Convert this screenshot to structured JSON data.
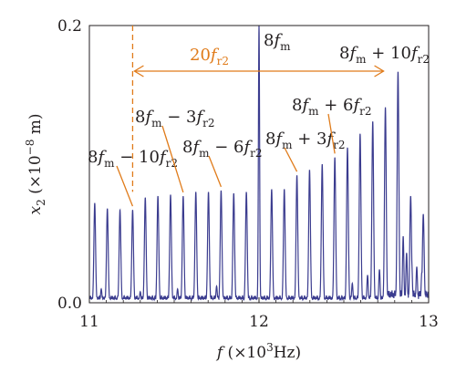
{
  "chart_data": {
    "type": "line",
    "xlabel": {
      "var": "f",
      "unit_prefix": "(×10",
      "unit_exp": "3",
      "unit_suffix": "Hz)"
    },
    "ylabel": {
      "var": "x",
      "sub": "2",
      "unit_prefix": "(×10",
      "unit_exp": "−8",
      "unit_suffix": " m)"
    },
    "xlim": [
      11,
      13
    ],
    "ylim": [
      0,
      0.2
    ],
    "x_ticks": [
      "11",
      "12",
      "13"
    ],
    "y_ticks": [
      "0.0",
      "0.2"
    ],
    "grid": false,
    "line_color": "#3b3c8f",
    "annotation_color": "#e07b1a",
    "fm_peak": {
      "x": 12.0,
      "y": 0.2
    },
    "sideband_step": 0.0745,
    "sidebands": [
      {
        "n": -13,
        "y": 0.072
      },
      {
        "n": -12,
        "y": 0.068
      },
      {
        "n": -11,
        "y": 0.067
      },
      {
        "n": -10,
        "y": 0.067
      },
      {
        "n": -9,
        "y": 0.076
      },
      {
        "n": -8,
        "y": 0.077
      },
      {
        "n": -7,
        "y": 0.078
      },
      {
        "n": -6,
        "y": 0.077
      },
      {
        "n": -5,
        "y": 0.08
      },
      {
        "n": -4,
        "y": 0.08
      },
      {
        "n": -3,
        "y": 0.081
      },
      {
        "n": -2,
        "y": 0.079
      },
      {
        "n": -1,
        "y": 0.08
      },
      {
        "n": 1,
        "y": 0.082
      },
      {
        "n": 2,
        "y": 0.082
      },
      {
        "n": 3,
        "y": 0.092
      },
      {
        "n": 4,
        "y": 0.096
      },
      {
        "n": 5,
        "y": 0.1
      },
      {
        "n": 6,
        "y": 0.105
      },
      {
        "n": 7,
        "y": 0.112
      },
      {
        "n": 8,
        "y": 0.122
      },
      {
        "n": 9,
        "y": 0.131
      },
      {
        "n": 10,
        "y": 0.141
      },
      {
        "n": 11,
        "y": 0.167
      },
      {
        "n": 12,
        "y": 0.077
      },
      {
        "n": 13,
        "y": 0.064
      }
    ],
    "noise_peaks": [
      {
        "x": 12.82,
        "y": 0.033
      },
      {
        "x": 12.85,
        "y": 0.048
      },
      {
        "x": 12.87,
        "y": 0.036
      },
      {
        "x": 12.9,
        "y": 0.03
      },
      {
        "x": 12.93,
        "y": 0.026
      },
      {
        "x": 12.96,
        "y": 0.022
      },
      {
        "x": 12.71,
        "y": 0.024
      },
      {
        "x": 12.64,
        "y": 0.02
      },
      {
        "x": 12.55,
        "y": 0.014
      },
      {
        "x": 11.07,
        "y": 0.01
      },
      {
        "x": 11.3,
        "y": 0.008
      },
      {
        "x": 11.52,
        "y": 0.01
      },
      {
        "x": 11.75,
        "y": 0.012
      },
      {
        "x": 12.3,
        "y": 0.012
      }
    ],
    "annotations": [
      {
        "id": "fm",
        "base": "8",
        "var": "f",
        "sub": "m",
        "op": "",
        "coef": "",
        "var2": "",
        "sub2": ""
      },
      {
        "id": "plus10",
        "base": "8",
        "var": "f",
        "sub": "m",
        "op": " + ",
        "coef": "10",
        "var2": "f",
        "sub2": "r2"
      },
      {
        "id": "minus3",
        "base": "8",
        "var": "f",
        "sub": "m",
        "op": " − ",
        "coef": "3",
        "var2": "f",
        "sub2": "r2"
      },
      {
        "id": "plus6",
        "base": "8",
        "var": "f",
        "sub": "m",
        "op": " + ",
        "coef": "6",
        "var2": "f",
        "sub2": "r2"
      },
      {
        "id": "minus6",
        "base": "8",
        "var": "f",
        "sub": "m",
        "op": " − ",
        "coef": "6",
        "var2": "f",
        "sub2": "r2"
      },
      {
        "id": "plus3",
        "base": "8",
        "var": "f",
        "sub": "m",
        "op": " + ",
        "coef": "3",
        "var2": "f",
        "sub2": "r2"
      },
      {
        "id": "minus10",
        "base": "8",
        "var": "f",
        "sub": "m",
        "op": " − ",
        "coef": "10",
        "var2": "f",
        "sub2": "r2"
      }
    ],
    "span_label": {
      "coef": "20",
      "var": "f",
      "sub": "r2"
    }
  }
}
